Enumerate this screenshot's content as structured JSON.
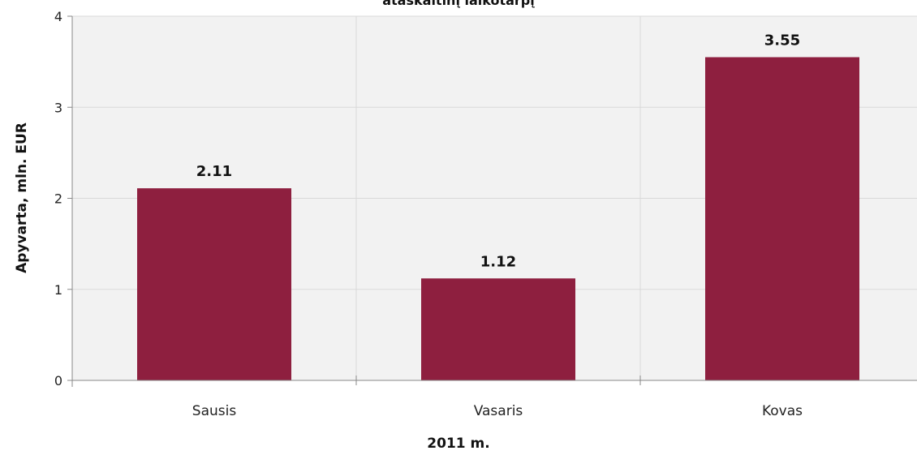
{
  "chart_data": {
    "type": "bar",
    "title": "ataskaitinį laikotarpį",
    "xlabel": "2011 m.",
    "ylabel": "Apyvarta, mln. EUR",
    "categories": [
      "Sausis",
      "Vasaris",
      "Kovas"
    ],
    "values": [
      2.11,
      1.12,
      3.55
    ],
    "value_labels": [
      "2.11",
      "1.12",
      "3.55"
    ],
    "ylim": [
      0,
      4
    ],
    "yticks": [
      "0",
      "1",
      "2",
      "3",
      "4"
    ],
    "grid": true,
    "colors": {
      "bar": "#8E1F3F",
      "plot_bg": "#F2F2F2",
      "grid": "#D9D9D9",
      "axis": "#888888"
    }
  }
}
